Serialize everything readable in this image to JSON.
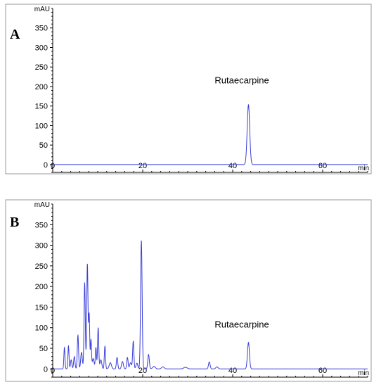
{
  "colors": {
    "trace": "#3a3fd6",
    "axis": "#000000",
    "frame": "#9a9a9a"
  },
  "chart_data": [
    {
      "type": "line",
      "panel_label": "A",
      "ylabel": "mAU",
      "xlabel": "min",
      "xlim": [
        0,
        70
      ],
      "ylim": [
        -20,
        400
      ],
      "x_ticks": [
        0,
        20,
        40,
        60
      ],
      "y_ticks": [
        0,
        50,
        100,
        150,
        200,
        250,
        300,
        350
      ],
      "peaks": [
        {
          "x": 43.5,
          "y": 153,
          "w": 0.28
        }
      ],
      "annotations": [
        {
          "text": "Rutaecarpine",
          "x": 36,
          "y": 208
        }
      ]
    },
    {
      "type": "line",
      "panel_label": "B",
      "ylabel": "mAU",
      "xlabel": "min",
      "xlim": [
        0,
        70
      ],
      "ylim": [
        -20,
        400
      ],
      "x_ticks": [
        0,
        20,
        40,
        60
      ],
      "y_ticks": [
        0,
        50,
        100,
        150,
        200,
        250,
        300,
        350
      ],
      "peaks": [
        {
          "x": 2.6,
          "y": 52,
          "w": 0.12
        },
        {
          "x": 3.5,
          "y": 56,
          "w": 0.12
        },
        {
          "x": 4.1,
          "y": 22,
          "w": 0.15
        },
        {
          "x": 4.8,
          "y": 30,
          "w": 0.15
        },
        {
          "x": 5.6,
          "y": 82,
          "w": 0.14
        },
        {
          "x": 6.4,
          "y": 40,
          "w": 0.18
        },
        {
          "x": 7.1,
          "y": 210,
          "w": 0.14
        },
        {
          "x": 7.7,
          "y": 255,
          "w": 0.14
        },
        {
          "x": 8.1,
          "y": 132,
          "w": 0.12
        },
        {
          "x": 8.5,
          "y": 70,
          "w": 0.12
        },
        {
          "x": 9.0,
          "y": 25,
          "w": 0.2
        },
        {
          "x": 9.6,
          "y": 52,
          "w": 0.13
        },
        {
          "x": 10.1,
          "y": 100,
          "w": 0.13
        },
        {
          "x": 10.7,
          "y": 22,
          "w": 0.2
        },
        {
          "x": 11.6,
          "y": 55,
          "w": 0.13
        },
        {
          "x": 12.8,
          "y": 15,
          "w": 0.25
        },
        {
          "x": 14.3,
          "y": 28,
          "w": 0.15
        },
        {
          "x": 15.5,
          "y": 18,
          "w": 0.2
        },
        {
          "x": 16.6,
          "y": 28,
          "w": 0.15
        },
        {
          "x": 17.3,
          "y": 15,
          "w": 0.2
        },
        {
          "x": 17.9,
          "y": 67,
          "w": 0.14
        },
        {
          "x": 18.7,
          "y": 14,
          "w": 0.2
        },
        {
          "x": 19.7,
          "y": 312,
          "w": 0.17
        },
        {
          "x": 21.3,
          "y": 35,
          "w": 0.17
        },
        {
          "x": 22.5,
          "y": 6,
          "w": 0.3
        },
        {
          "x": 24.5,
          "y": 5,
          "w": 0.3
        },
        {
          "x": 29.5,
          "y": 4,
          "w": 0.4
        },
        {
          "x": 34.8,
          "y": 17,
          "w": 0.18
        },
        {
          "x": 36.5,
          "y": 5,
          "w": 0.25
        },
        {
          "x": 43.5,
          "y": 64,
          "w": 0.22
        }
      ],
      "annotations": [
        {
          "text": "Rutaecarpine",
          "x": 36,
          "y": 100
        }
      ]
    }
  ]
}
